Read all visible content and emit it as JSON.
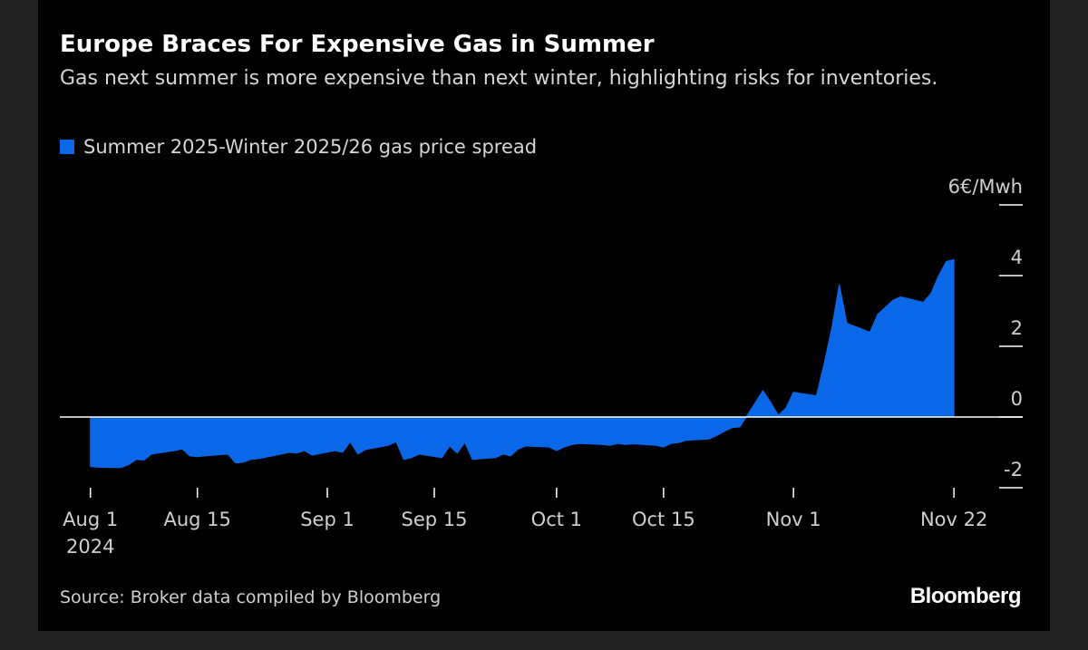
{
  "title": "Europe Braces For Expensive Gas in Summer",
  "subtitle": "Gas next summer is more expensive than next winter, highlighting risks for inventories.",
  "source": "Source: Broker data compiled by Bloomberg",
  "brand": "Bloomberg",
  "colors": {
    "background": "#000000",
    "series": "#0a68e8",
    "text": "#ffffff",
    "muted": "#cfcfcf"
  },
  "chart_data": {
    "type": "area",
    "series": [
      {
        "name": "Summer 2025-Winter 2025/26 gas price spread",
        "x": [
          "2024-08-01",
          "2024-08-02",
          "2024-08-05",
          "2024-08-06",
          "2024-08-07",
          "2024-08-08",
          "2024-08-09",
          "2024-08-12",
          "2024-08-13",
          "2024-08-14",
          "2024-08-15",
          "2024-08-16",
          "2024-08-19",
          "2024-08-20",
          "2024-08-21",
          "2024-08-22",
          "2024-08-23",
          "2024-08-26",
          "2024-08-27",
          "2024-08-28",
          "2024-08-29",
          "2024-08-30",
          "2024-09-02",
          "2024-09-03",
          "2024-09-04",
          "2024-09-05",
          "2024-09-06",
          "2024-09-09",
          "2024-09-10",
          "2024-09-11",
          "2024-09-12",
          "2024-09-13",
          "2024-09-16",
          "2024-09-17",
          "2024-09-18",
          "2024-09-19",
          "2024-09-20",
          "2024-09-23",
          "2024-09-24",
          "2024-09-25",
          "2024-09-26",
          "2024-09-27",
          "2024-09-30",
          "2024-10-01",
          "2024-10-02",
          "2024-10-03",
          "2024-10-04",
          "2024-10-07",
          "2024-10-08",
          "2024-10-09",
          "2024-10-10",
          "2024-10-11",
          "2024-10-14",
          "2024-10-15",
          "2024-10-16",
          "2024-10-17",
          "2024-10-18",
          "2024-10-21",
          "2024-10-22",
          "2024-10-23",
          "2024-10-24",
          "2024-10-25",
          "2024-10-28",
          "2024-10-29",
          "2024-10-30",
          "2024-10-31",
          "2024-11-01",
          "2024-11-04",
          "2024-11-05",
          "2024-11-06",
          "2024-11-07",
          "2024-11-08",
          "2024-11-11",
          "2024-11-12",
          "2024-11-13",
          "2024-11-14",
          "2024-11-15",
          "2024-11-18",
          "2024-11-19",
          "2024-11-20",
          "2024-11-21",
          "2024-11-22"
        ],
        "values": [
          -1.4,
          -1.42,
          -1.43,
          -1.35,
          -1.2,
          -1.22,
          -1.05,
          -0.95,
          -0.9,
          -1.1,
          -1.12,
          -1.1,
          -1.05,
          -1.3,
          -1.28,
          -1.2,
          -1.18,
          -1.05,
          -1.0,
          -1.02,
          -0.95,
          -1.08,
          -0.95,
          -1.0,
          -0.7,
          -1.05,
          -0.92,
          -0.8,
          -0.7,
          -1.2,
          -1.15,
          -1.05,
          -1.15,
          -0.82,
          -1.02,
          -0.72,
          -1.2,
          -1.15,
          -1.05,
          -1.1,
          -0.9,
          -0.82,
          -0.85,
          -0.95,
          -0.85,
          -0.78,
          -0.75,
          -0.78,
          -0.8,
          -0.75,
          -0.78,
          -0.76,
          -0.8,
          -0.85,
          -0.75,
          -0.72,
          -0.66,
          -0.62,
          -0.52,
          -0.4,
          -0.3,
          -0.28,
          0.75,
          0.42,
          0.05,
          0.25,
          0.7,
          0.6,
          1.5,
          2.5,
          3.75,
          2.65,
          2.4,
          2.9,
          3.1,
          3.3,
          3.4,
          3.25,
          3.5,
          4.0,
          4.4,
          4.45
        ]
      }
    ],
    "x_ticks": [
      "Aug 1",
      "Aug 15",
      "Sep 1",
      "Sep 15",
      "Oct 1",
      "Oct 15",
      "Nov 1",
      "Nov 22"
    ],
    "x_tick_dates": [
      "2024-08-01",
      "2024-08-15",
      "2024-09-01",
      "2024-09-15",
      "2024-10-01",
      "2024-10-15",
      "2024-11-01",
      "2024-11-22"
    ],
    "x_year_label": "2024",
    "y_ticks": [
      -2,
      0,
      2,
      4,
      6
    ],
    "y_top_label": "6€/Mwh",
    "ylim": [
      -2,
      6
    ],
    "xlim": [
      "2024-07-28",
      "2024-12-01"
    ],
    "legend_position": "top-left",
    "grid": false
  }
}
